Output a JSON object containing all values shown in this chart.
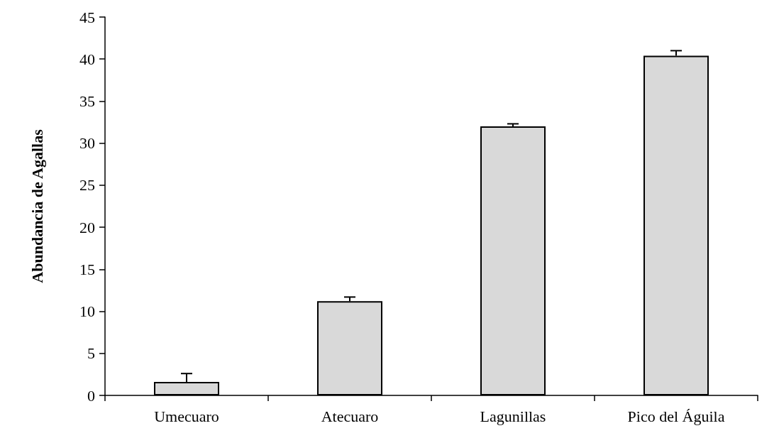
{
  "chart_data": {
    "type": "bar",
    "ylabel": "Abundancia de Agallas",
    "categories": [
      "Umecuaro",
      "Atecuaro",
      "Lagunillas",
      "Pico del Águila"
    ],
    "values": [
      1.6,
      11.2,
      32.0,
      40.4
    ],
    "errors": [
      [
        1.6,
        2.6
      ],
      [
        11.2,
        11.7
      ],
      [
        32.0,
        32.3
      ],
      [
        40.4,
        41.0
      ]
    ],
    "color": "#d9d9d9",
    "ylim": [
      0,
      45
    ],
    "yticks": [
      0,
      5,
      10,
      15,
      20,
      25,
      30,
      35,
      40,
      45
    ],
    "grid": false
  }
}
